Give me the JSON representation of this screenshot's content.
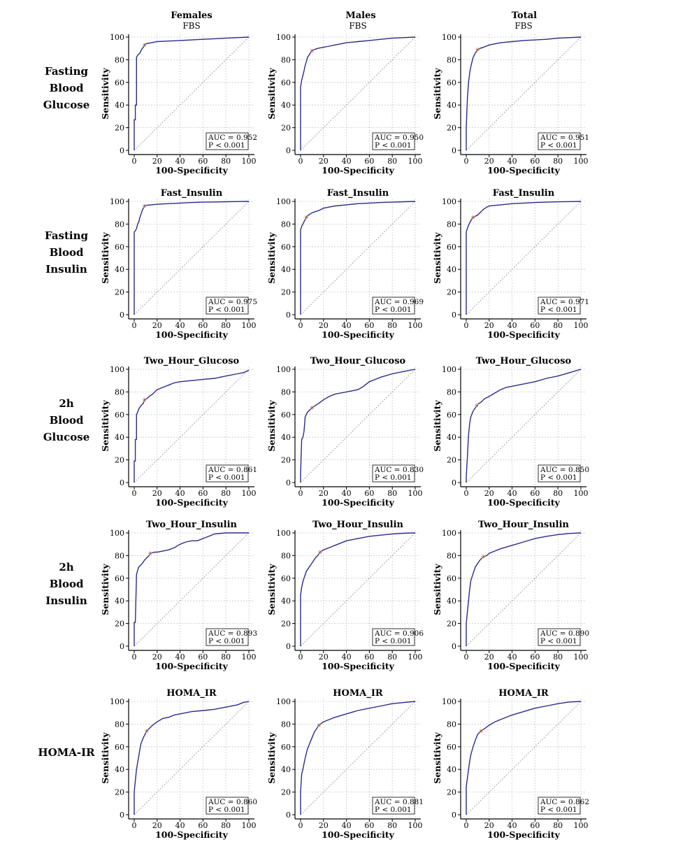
{
  "figure": {
    "column_headers": [
      "Females",
      "Males",
      "Total"
    ],
    "row_labels": [
      [
        "Fasting",
        "Blood",
        "Glucose"
      ],
      [
        "Fasting",
        "Blood",
        "Insulin"
      ],
      [
        "2h",
        "Blood",
        "Glucose"
      ],
      [
        "2h",
        "Blood",
        "Insulin"
      ],
      [
        "HOMA-IR"
      ]
    ]
  },
  "colors": {
    "curve": "#2b2b8c",
    "diagonal": "#9a9a9a",
    "grid": "#c8c8c8",
    "cutoff": "#e8a06a"
  },
  "chart_data": [
    {
      "type": "line",
      "row": 0,
      "col": 0,
      "subtitle": "FBS",
      "xlabel": "100-Specificity",
      "ylabel": "Sensitivity",
      "xlim": [
        0,
        100
      ],
      "ylim": [
        0,
        100
      ],
      "xticks": [
        0,
        20,
        40,
        60,
        80,
        100
      ],
      "yticks": [
        0,
        20,
        40,
        60,
        80,
        100
      ],
      "grid": true,
      "auc_text": "AUC = 0.952",
      "p_text": "P < 0.001",
      "cutoff": [
        9,
        93
      ],
      "x": [
        0,
        0,
        1,
        1,
        2,
        2,
        3,
        4,
        5,
        6,
        7,
        8,
        9,
        10,
        15,
        20,
        30,
        40,
        50,
        60,
        70,
        80,
        90,
        100
      ],
      "y": [
        0,
        27,
        27,
        40,
        40,
        82,
        84,
        85,
        86,
        88,
        90,
        91,
        93,
        94,
        95,
        96,
        96.5,
        97,
        97.5,
        98,
        98.5,
        99,
        99.5,
        100
      ]
    },
    {
      "type": "line",
      "row": 0,
      "col": 1,
      "subtitle": "FBS",
      "xlabel": "100-Specificity",
      "ylabel": "Sensitivity",
      "xlim": [
        0,
        100
      ],
      "ylim": [
        0,
        100
      ],
      "xticks": [
        0,
        20,
        40,
        60,
        80,
        100
      ],
      "yticks": [
        0,
        20,
        40,
        60,
        80,
        100
      ],
      "grid": true,
      "auc_text": "AUC = 0.950",
      "p_text": "P < 0.001",
      "cutoff": [
        10,
        88
      ],
      "x": [
        0,
        0,
        1,
        2,
        3,
        4,
        5,
        6,
        8,
        10,
        12,
        15,
        20,
        25,
        30,
        40,
        50,
        60,
        70,
        80,
        90,
        100
      ],
      "y": [
        0,
        56,
        62,
        66,
        70,
        75,
        78,
        82,
        85,
        88,
        89,
        90,
        91,
        92,
        93,
        95,
        96,
        97,
        98,
        99,
        99.5,
        100
      ]
    },
    {
      "type": "line",
      "row": 0,
      "col": 2,
      "subtitle": "FBS",
      "xlabel": "100-Specificity",
      "ylabel": "Sensitivity",
      "xlim": [
        0,
        100
      ],
      "ylim": [
        0,
        100
      ],
      "xticks": [
        0,
        20,
        40,
        60,
        80,
        100
      ],
      "yticks": [
        0,
        20,
        40,
        60,
        80,
        100
      ],
      "grid": true,
      "auc_text": "AUC = 0.951",
      "p_text": "P < 0.001",
      "cutoff": [
        10,
        89
      ],
      "x": [
        0,
        0,
        1,
        2,
        3,
        4,
        5,
        6,
        8,
        10,
        12,
        15,
        20,
        25,
        30,
        40,
        50,
        60,
        70,
        80,
        90,
        100
      ],
      "y": [
        0,
        20,
        45,
        60,
        68,
        74,
        78,
        82,
        86,
        89,
        90,
        91,
        93,
        94,
        95,
        96,
        97,
        97.5,
        98,
        99,
        99.5,
        100
      ]
    },
    {
      "type": "line",
      "row": 1,
      "col": 0,
      "title": "Fast_Insulin",
      "xlabel": "100-Specificity",
      "ylabel": "Sensitivity",
      "xlim": [
        0,
        100
      ],
      "ylim": [
        0,
        100
      ],
      "xticks": [
        0,
        20,
        40,
        60,
        80,
        100
      ],
      "yticks": [
        0,
        20,
        40,
        60,
        80,
        100
      ],
      "grid": true,
      "auc_text": "AUC = 0.975",
      "p_text": "P < 0.001",
      "cutoff": [
        9,
        96
      ],
      "x": [
        0,
        0,
        1,
        2,
        3,
        4,
        5,
        6,
        7,
        8,
        9,
        10,
        15,
        20,
        30,
        40,
        50,
        60,
        70,
        80,
        90,
        100
      ],
      "y": [
        0,
        73,
        74,
        76,
        80,
        82,
        86,
        89,
        92,
        94,
        96,
        96.5,
        97,
        97.5,
        98,
        98.5,
        99,
        99.3,
        99.5,
        99.7,
        99.9,
        100
      ]
    },
    {
      "type": "line",
      "row": 1,
      "col": 1,
      "title": "Fast_Insulin",
      "xlabel": "100-Specificity",
      "ylabel": "Sensitivity",
      "xlim": [
        0,
        100
      ],
      "ylim": [
        0,
        100
      ],
      "xticks": [
        0,
        20,
        40,
        60,
        80,
        100
      ],
      "yticks": [
        0,
        20,
        40,
        60,
        80,
        100
      ],
      "grid": true,
      "auc_text": "AUC = 0.969",
      "p_text": "P < 0.001",
      "cutoff": [
        5,
        86
      ],
      "x": [
        0,
        0,
        1,
        2,
        3,
        4,
        5,
        7,
        10,
        13,
        16,
        20,
        25,
        30,
        40,
        50,
        60,
        70,
        80,
        90,
        100
      ],
      "y": [
        0,
        75,
        78,
        80,
        82,
        84,
        86,
        88,
        90,
        91,
        92,
        94,
        95,
        96,
        97,
        98,
        98.5,
        99,
        99.3,
        99.7,
        100
      ]
    },
    {
      "type": "line",
      "row": 1,
      "col": 2,
      "title": "Fast_Insulin",
      "xlabel": "100-Specificity",
      "ylabel": "Sensitivity",
      "xlim": [
        0,
        100
      ],
      "ylim": [
        0,
        100
      ],
      "xticks": [
        0,
        20,
        40,
        60,
        80,
        100
      ],
      "yticks": [
        0,
        20,
        40,
        60,
        80,
        100
      ],
      "grid": true,
      "auc_text": "AUC = 0.971",
      "p_text": "P < 0.001",
      "cutoff": [
        6,
        86
      ],
      "x": [
        0,
        0,
        1,
        2,
        3,
        4,
        6,
        8,
        10,
        12,
        15,
        18,
        20,
        25,
        30,
        40,
        50,
        60,
        70,
        80,
        90,
        100
      ],
      "y": [
        0,
        73,
        76,
        79,
        81,
        83,
        86,
        87,
        88,
        90,
        93,
        95,
        96,
        96.5,
        97,
        98,
        98.5,
        99,
        99.3,
        99.6,
        99.8,
        100
      ]
    },
    {
      "type": "line",
      "row": 2,
      "col": 0,
      "title": "Two_Hour_Glucoso",
      "xlabel": "100-Specificity",
      "ylabel": "Sensitivity",
      "xlim": [
        0,
        100
      ],
      "ylim": [
        0,
        100
      ],
      "xticks": [
        0,
        20,
        40,
        60,
        80,
        100
      ],
      "yticks": [
        0,
        20,
        40,
        60,
        80,
        100
      ],
      "grid": true,
      "auc_text": "AUC = 0.861",
      "p_text": "P < 0.001",
      "cutoff": [
        9,
        73
      ],
      "x": [
        0,
        0,
        1,
        1,
        2,
        2,
        3,
        4,
        6,
        8,
        9,
        11,
        13,
        16,
        20,
        25,
        30,
        35,
        40,
        50,
        60,
        70,
        80,
        90,
        95,
        100
      ],
      "y": [
        0,
        19,
        19,
        38,
        38,
        60,
        62,
        65,
        68,
        70,
        73,
        74,
        76,
        78,
        82,
        84,
        86,
        88,
        89,
        90,
        91,
        92,
        94,
        96,
        97,
        99
      ]
    },
    {
      "type": "line",
      "row": 2,
      "col": 1,
      "title": "Two_Hour_Glucoso",
      "xlabel": "100-Specificity",
      "ylabel": "Sensitivity",
      "xlim": [
        0,
        100
      ],
      "ylim": [
        0,
        100
      ],
      "xticks": [
        0,
        20,
        40,
        60,
        80,
        100
      ],
      "yticks": [
        0,
        20,
        40,
        60,
        80,
        100
      ],
      "grid": true,
      "auc_text": "AUC = 0.830",
      "p_text": "P < 0.001",
      "cutoff": [
        10,
        66
      ],
      "x": [
        0,
        0,
        1,
        2,
        3,
        4,
        5,
        6,
        8,
        10,
        13,
        16,
        20,
        25,
        30,
        35,
        40,
        45,
        50,
        55,
        60,
        65,
        70,
        80,
        90,
        100
      ],
      "y": [
        0,
        8,
        38,
        40,
        45,
        58,
        60,
        62,
        64,
        66,
        68,
        70,
        73,
        76,
        78,
        79,
        80,
        81,
        82,
        85,
        89,
        91,
        93,
        96,
        98,
        100
      ]
    },
    {
      "type": "line",
      "row": 2,
      "col": 2,
      "title": "Two_Hour_Glucoso",
      "xlabel": "100-Specificity",
      "ylabel": "Sensitivity",
      "xlim": [
        0,
        100
      ],
      "ylim": [
        0,
        100
      ],
      "xticks": [
        0,
        20,
        40,
        60,
        80,
        100
      ],
      "yticks": [
        0,
        20,
        40,
        60,
        80,
        100
      ],
      "grid": true,
      "auc_text": "AUC = 0.850",
      "p_text": "P < 0.001",
      "cutoff": [
        9,
        68
      ],
      "x": [
        0,
        0,
        1,
        2,
        3,
        4,
        6,
        8,
        10,
        13,
        16,
        20,
        25,
        30,
        35,
        40,
        50,
        60,
        70,
        80,
        90,
        100
      ],
      "y": [
        0,
        5,
        22,
        42,
        52,
        58,
        63,
        66,
        69,
        71,
        74,
        76,
        79,
        82,
        84,
        85,
        87,
        89,
        92,
        94,
        97,
        100
      ]
    },
    {
      "type": "line",
      "row": 3,
      "col": 0,
      "title": "Two_Hour_Insulin",
      "xlabel": "100-Specificity",
      "ylabel": "Sensitivity",
      "xlim": [
        0,
        100
      ],
      "ylim": [
        0,
        100
      ],
      "xticks": [
        0,
        20,
        40,
        60,
        80,
        100
      ],
      "yticks": [
        0,
        20,
        40,
        60,
        80,
        100
      ],
      "grid": true,
      "auc_text": "AUC = 0.893",
      "p_text": "P < 0.001",
      "cutoff": [
        14,
        82
      ],
      "x": [
        0,
        0,
        1,
        2,
        3,
        4,
        5,
        7,
        9,
        11,
        13,
        14,
        18,
        20,
        25,
        30,
        35,
        40,
        45,
        50,
        55,
        60,
        65,
        70,
        80,
        90,
        100
      ],
      "y": [
        0,
        21,
        21,
        63,
        67,
        70,
        71,
        73,
        76,
        78,
        80,
        82,
        83,
        83,
        84,
        85,
        87,
        90,
        92,
        93,
        93,
        95,
        97,
        99,
        100,
        100,
        100
      ]
    },
    {
      "type": "line",
      "row": 3,
      "col": 1,
      "title": "Two_Hour_Insulin",
      "xlabel": "100-Specificity",
      "ylabel": "Sensitivity",
      "xlim": [
        0,
        100
      ],
      "ylim": [
        0,
        100
      ],
      "xticks": [
        0,
        20,
        40,
        60,
        80,
        100
      ],
      "yticks": [
        0,
        20,
        40,
        60,
        80,
        100
      ],
      "grid": true,
      "auc_text": "AUC = 0.906",
      "p_text": "P < 0.001",
      "cutoff": [
        17,
        83
      ],
      "x": [
        0,
        0,
        1,
        2,
        3,
        4,
        5,
        7,
        9,
        11,
        13,
        15,
        17,
        20,
        25,
        30,
        40,
        50,
        60,
        70,
        80,
        90,
        100
      ],
      "y": [
        0,
        45,
        52,
        57,
        60,
        63,
        66,
        69,
        72,
        75,
        78,
        80,
        83,
        85,
        87,
        89,
        93,
        95,
        97,
        98,
        99,
        99.7,
        100
      ]
    },
    {
      "type": "line",
      "row": 3,
      "col": 2,
      "title": "Two_Hour_Insulin",
      "xlabel": "100-Specificity",
      "ylabel": "Sensitivity",
      "xlim": [
        0,
        100
      ],
      "ylim": [
        0,
        100
      ],
      "xticks": [
        0,
        20,
        40,
        60,
        80,
        100
      ],
      "yticks": [
        0,
        20,
        40,
        60,
        80,
        100
      ],
      "grid": true,
      "auc_text": "AUC = 0.890",
      "p_text": "P < 0.001",
      "cutoff": [
        15,
        79
      ],
      "x": [
        0,
        0,
        1,
        2,
        3,
        4,
        6,
        8,
        10,
        12,
        15,
        18,
        20,
        25,
        30,
        40,
        50,
        60,
        70,
        80,
        90,
        100
      ],
      "y": [
        0,
        20,
        30,
        40,
        50,
        58,
        64,
        70,
        73,
        76,
        79,
        80,
        82,
        84,
        86,
        89,
        92,
        95,
        97,
        98.5,
        99.5,
        100
      ]
    },
    {
      "type": "line",
      "row": 4,
      "col": 0,
      "title": "HOMA_IR",
      "xlabel": "100-Specificity",
      "ylabel": "Sensitivity",
      "xlim": [
        0,
        100
      ],
      "ylim": [
        0,
        100
      ],
      "xticks": [
        0,
        20,
        40,
        60,
        80,
        100
      ],
      "yticks": [
        0,
        20,
        40,
        60,
        80,
        100
      ],
      "grid": true,
      "auc_text": "AUC = 0.860",
      "p_text": "P < 0.001",
      "cutoff": [
        11,
        74
      ],
      "x": [
        0,
        0,
        1,
        2,
        3,
        4,
        5,
        6,
        8,
        11,
        13,
        16,
        20,
        25,
        30,
        35,
        40,
        50,
        60,
        70,
        80,
        90,
        95,
        100
      ],
      "y": [
        0,
        20,
        30,
        40,
        46,
        52,
        58,
        63,
        68,
        74,
        76,
        79,
        82,
        85,
        86,
        88,
        89,
        91,
        92,
        93,
        95,
        97,
        99,
        100
      ]
    },
    {
      "type": "line",
      "row": 4,
      "col": 1,
      "title": "HOMA_IR",
      "xlabel": "100-Specificity",
      "ylabel": "Sensitivity",
      "xlim": [
        0,
        100
      ],
      "ylim": [
        0,
        100
      ],
      "xticks": [
        0,
        20,
        40,
        60,
        80,
        100
      ],
      "yticks": [
        0,
        20,
        40,
        60,
        80,
        100
      ],
      "grid": true,
      "auc_text": "AUC = 0.881",
      "p_text": "P < 0.001",
      "cutoff": [
        16,
        79
      ],
      "x": [
        0,
        0,
        1,
        2,
        3,
        4,
        5,
        6,
        8,
        10,
        12,
        14,
        16,
        20,
        25,
        30,
        40,
        50,
        60,
        70,
        80,
        90,
        100
      ],
      "y": [
        0,
        20,
        36,
        40,
        45,
        50,
        54,
        58,
        63,
        68,
        73,
        76,
        79,
        82,
        84,
        86,
        89,
        92,
        94,
        96,
        98,
        99,
        100
      ]
    },
    {
      "type": "line",
      "row": 4,
      "col": 2,
      "title": "HOMA_IR",
      "xlabel": "100-Specificity",
      "ylabel": "Sensitivity",
      "xlim": [
        0,
        100
      ],
      "ylim": [
        0,
        100
      ],
      "xticks": [
        0,
        20,
        40,
        60,
        80,
        100
      ],
      "yticks": [
        0,
        20,
        40,
        60,
        80,
        100
      ],
      "grid": true,
      "auc_text": "AUC = 0.862",
      "p_text": "P < 0.001",
      "cutoff": [
        13,
        74
      ],
      "x": [
        0,
        0,
        1,
        2,
        3,
        4,
        6,
        8,
        10,
        13,
        16,
        20,
        25,
        30,
        40,
        50,
        60,
        70,
        80,
        90,
        100
      ],
      "y": [
        0,
        25,
        32,
        40,
        47,
        53,
        60,
        66,
        71,
        74,
        76,
        79,
        82,
        84,
        88,
        91,
        94,
        96,
        98,
        99.5,
        100
      ]
    }
  ]
}
